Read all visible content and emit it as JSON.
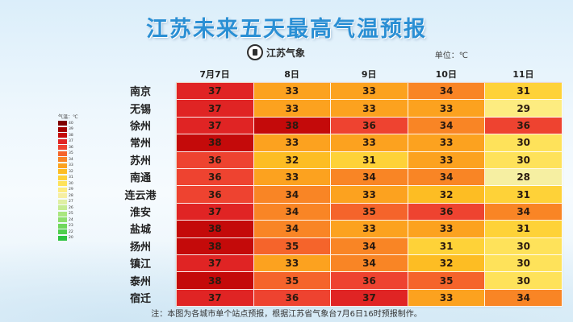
{
  "title": "江苏未来五天最高气温预报",
  "logo_text": "江苏气象",
  "unit_label": "单位：℃",
  "legend": {
    "title": "气温：℃",
    "levels": [
      {
        "label": "40",
        "color": "#7f0000"
      },
      {
        "label": "39",
        "color": "#a30000"
      },
      {
        "label": "38",
        "color": "#c40a0a"
      },
      {
        "label": "37",
        "color": "#e02424"
      },
      {
        "label": "36",
        "color": "#ee4330"
      },
      {
        "label": "35",
        "color": "#f5642b"
      },
      {
        "label": "34",
        "color": "#f98525"
      },
      {
        "label": "33",
        "color": "#fca21f"
      },
      {
        "label": "32",
        "color": "#fdbd23"
      },
      {
        "label": "31",
        "color": "#fed238"
      },
      {
        "label": "30",
        "color": "#fee25a"
      },
      {
        "label": "29",
        "color": "#fdec80"
      },
      {
        "label": "28",
        "color": "#f6efa2"
      },
      {
        "label": "27",
        "color": "#dfefa2"
      },
      {
        "label": "26",
        "color": "#c5ec92"
      },
      {
        "label": "25",
        "color": "#a9e67f"
      },
      {
        "label": "24",
        "color": "#8ddf6c"
      },
      {
        "label": "23",
        "color": "#6fd75c"
      },
      {
        "label": "22",
        "color": "#4fcf4d"
      },
      {
        "label": "20",
        "color": "#2cc33f"
      }
    ]
  },
  "footnote": "注：本图为各城市单个站点预报，根据江苏省气象台7月6日16时预报制作。",
  "chart_data": {
    "type": "heatmap",
    "title": "江苏未来五天最高气温预报",
    "unit": "℃",
    "columns": [
      "7月7日",
      "8日",
      "9日",
      "10日",
      "11日"
    ],
    "rows": [
      "南京",
      "无锡",
      "徐州",
      "常州",
      "苏州",
      "南通",
      "连云港",
      "淮安",
      "盐城",
      "扬州",
      "镇江",
      "泰州",
      "宿迁"
    ],
    "values": [
      [
        37,
        33,
        33,
        34,
        31
      ],
      [
        37,
        33,
        33,
        33,
        29
      ],
      [
        37,
        38,
        36,
        34,
        36
      ],
      [
        38,
        33,
        33,
        33,
        30
      ],
      [
        36,
        32,
        31,
        33,
        30
      ],
      [
        36,
        33,
        34,
        34,
        28
      ],
      [
        36,
        34,
        33,
        32,
        31
      ],
      [
        37,
        34,
        35,
        36,
        34
      ],
      [
        38,
        34,
        33,
        33,
        31
      ],
      [
        38,
        35,
        34,
        31,
        30
      ],
      [
        37,
        33,
        34,
        32,
        30
      ],
      [
        38,
        35,
        36,
        35,
        30
      ],
      [
        37,
        36,
        37,
        33,
        34
      ]
    ]
  }
}
